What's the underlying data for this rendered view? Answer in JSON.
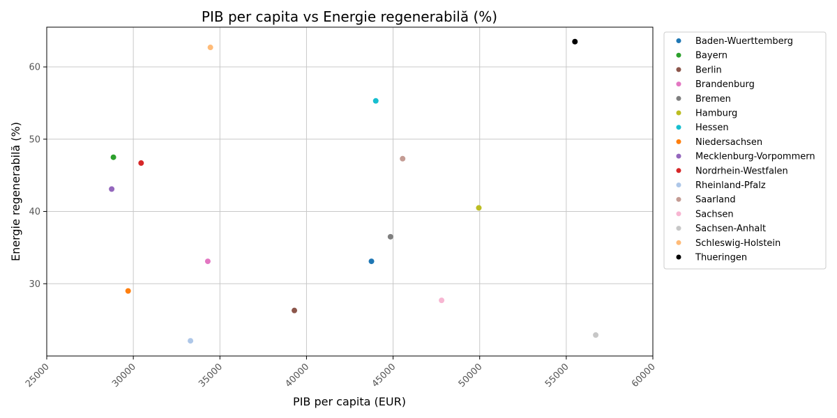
{
  "chart_data": {
    "type": "scatter",
    "title": "PIB per capita vs Energie regenerabilă (%)",
    "xlabel": "PIB per capita (EUR)",
    "ylabel": "Energie regenerabilă (%)",
    "xlim": [
      25000,
      60000
    ],
    "ylim": [
      20,
      65.5
    ],
    "xticks": [
      25000,
      30000,
      35000,
      40000,
      45000,
      50000,
      55000,
      60000
    ],
    "yticks": [
      30,
      40,
      50,
      60
    ],
    "grid": true,
    "legend_position": "outside-right",
    "series": [
      {
        "name": "Baden-Wuerttemberg",
        "color": "#1f77b4",
        "points": [
          [
            43750,
            33.1
          ]
        ]
      },
      {
        "name": "Bayern",
        "color": "#2ca02c",
        "points": [
          [
            28850,
            47.5
          ]
        ]
      },
      {
        "name": "Berlin",
        "color": "#8c564b",
        "points": [
          [
            39300,
            26.3
          ]
        ]
      },
      {
        "name": "Brandenburg",
        "color": "#e377c2",
        "points": [
          [
            34300,
            33.1
          ]
        ]
      },
      {
        "name": "Bremen",
        "color": "#7f7f7f",
        "points": [
          [
            44850,
            36.5
          ]
        ]
      },
      {
        "name": "Hamburg",
        "color": "#bcbd22",
        "points": [
          [
            49950,
            40.5
          ]
        ]
      },
      {
        "name": "Hessen",
        "color": "#17becf",
        "points": [
          [
            44000,
            55.3
          ]
        ]
      },
      {
        "name": "Niedersachsen",
        "color": "#ff7f0e",
        "points": [
          [
            29700,
            29.0
          ]
        ]
      },
      {
        "name": "Mecklenburg-Vorpommern",
        "color": "#9467bd",
        "points": [
          [
            28750,
            43.1
          ]
        ]
      },
      {
        "name": "Nordrhein-Westfalen",
        "color": "#d62728",
        "points": [
          [
            30450,
            46.7
          ]
        ]
      },
      {
        "name": "Rheinland-Pfalz",
        "color": "#aec7e8",
        "points": [
          [
            33300,
            22.1
          ]
        ]
      },
      {
        "name": "Saarland",
        "color": "#c49c94",
        "points": [
          [
            45550,
            47.3
          ]
        ]
      },
      {
        "name": "Sachsen",
        "color": "#f7b6d2",
        "points": [
          [
            47800,
            27.7
          ]
        ]
      },
      {
        "name": "Sachsen-Anhalt",
        "color": "#c7c7c7",
        "points": [
          [
            56700,
            22.9
          ]
        ]
      },
      {
        "name": "Schleswig-Holstein",
        "color": "#ffbb78",
        "points": [
          [
            34450,
            62.7
          ]
        ]
      },
      {
        "name": "Thueringen",
        "color": "#000000",
        "points": [
          [
            55500,
            63.5
          ]
        ]
      }
    ]
  }
}
